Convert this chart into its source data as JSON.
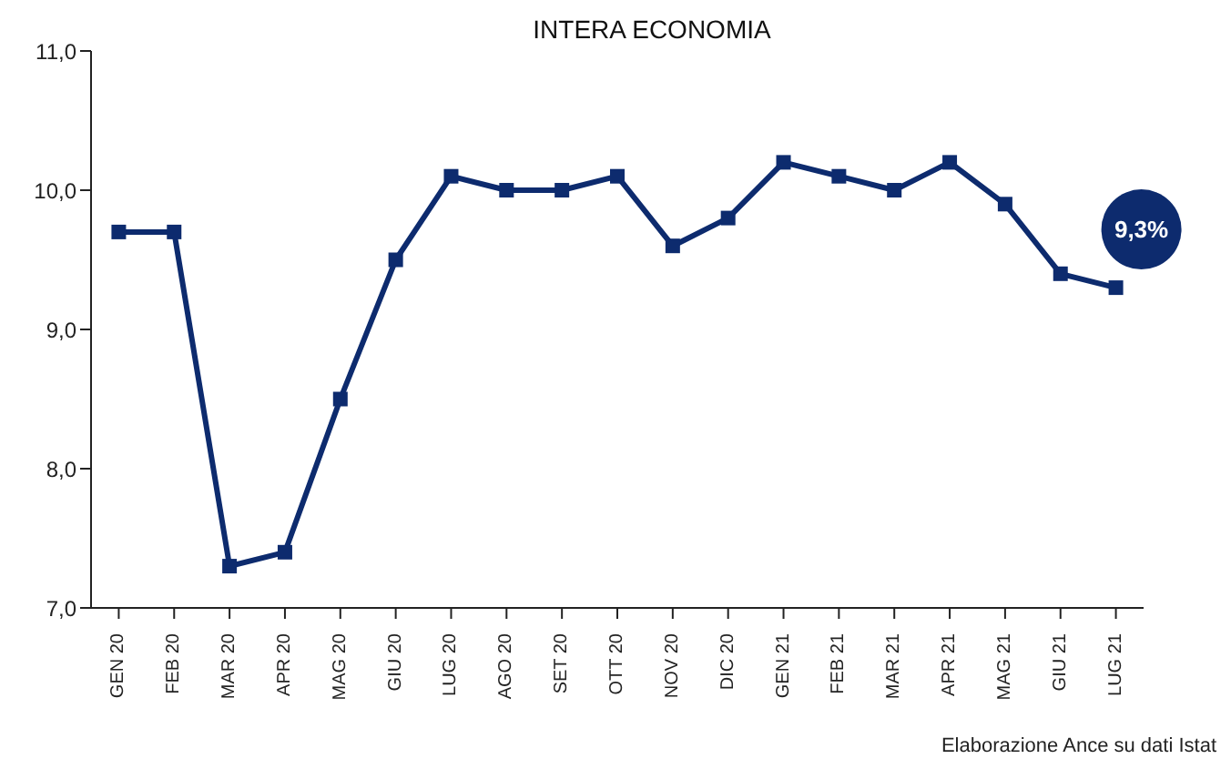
{
  "chart_data": {
    "type": "line",
    "title": "INTERA ECONOMIA",
    "categories": [
      "GEN 20",
      "FEB 20",
      "MAR 20",
      "APR 20",
      "MAG 20",
      "GIU 20",
      "LUG 20",
      "AGO 20",
      "SET 20",
      "OTT 20",
      "NOV 20",
      "DIC 20",
      "GEN 21",
      "FEB 21",
      "MAR 21",
      "APR 21",
      "MAG 21",
      "GIU 21",
      "LUG 21"
    ],
    "series": [
      {
        "color": "#0d2b6e",
        "values": [
          9.7,
          9.7,
          7.3,
          7.4,
          8.5,
          9.5,
          10.1,
          10.0,
          10.0,
          10.1,
          9.6,
          9.8,
          10.2,
          10.1,
          10.0,
          10.2,
          9.9,
          9.4,
          9.3
        ]
      }
    ],
    "ylim": [
      7,
      11
    ],
    "yticks": [
      {
        "value": 7,
        "label": "7,0"
      },
      {
        "value": 8,
        "label": "8,0"
      },
      {
        "value": 9,
        "label": "9,0"
      },
      {
        "value": 10,
        "label": "10,0"
      },
      {
        "value": 11,
        "label": "11,0"
      }
    ],
    "marker": "square",
    "line_style": "solid",
    "grid": false,
    "annotations": [
      {
        "text": "9,3%",
        "x": "LUG 21",
        "y": 9.3
      },
      "Elaborazione Ance su dati Istat"
    ]
  }
}
